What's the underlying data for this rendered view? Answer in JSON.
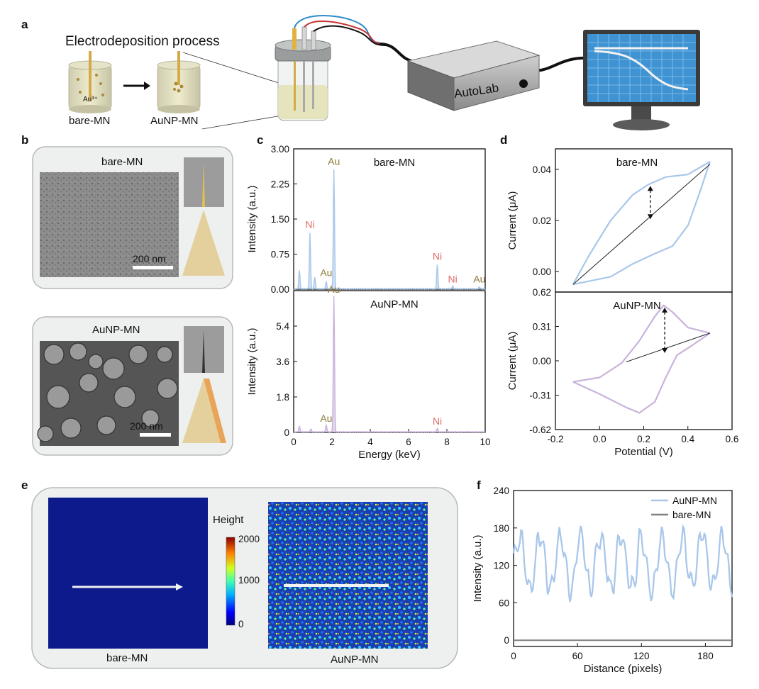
{
  "panel_labels": {
    "a": "a",
    "b": "b",
    "c": "c",
    "d": "d",
    "e": "e",
    "f": "f"
  },
  "panel_a": {
    "title": "Electrodeposition process",
    "label_left": "bare-MN",
    "label_right": "AuNP-MN",
    "ion_label": "Au³⁺",
    "device_label": "AutoLab",
    "colors": {
      "solution": "#d9d6a4",
      "needle": "#d4a94a",
      "particles": "#a88a3c",
      "screen": "#3f93d2"
    }
  },
  "panel_b": {
    "top_label": "bare-MN",
    "bottom_label": "AuNP-MN",
    "scale_bar": "200 nm",
    "colors": {
      "tip": "#e3d09c",
      "coating": "#e8a55a",
      "card": "#edf0ee"
    }
  },
  "chart_data": [
    {
      "id": "c-top",
      "type": "line",
      "title": "bare-MN",
      "xlabel": "Energy (keV)",
      "ylabel": "Intensity (a.u.)",
      "xlim": [
        0,
        10
      ],
      "ylim": [
        0,
        3.0
      ],
      "yticks": [
        "0.00",
        "0.75",
        "1.50",
        "2.25",
        "3.00"
      ],
      "color": "#a9c7ea",
      "peaks": [
        {
          "x": 0.3,
          "y": 0.4
        },
        {
          "x": 0.85,
          "y": 1.2
        },
        {
          "x": 1.1,
          "y": 0.25
        },
        {
          "x": 1.7,
          "y": 0.15
        },
        {
          "x": 2.1,
          "y": 2.55
        },
        {
          "x": 7.5,
          "y": 0.52
        },
        {
          "x": 8.3,
          "y": 0.06
        },
        {
          "x": 9.7,
          "y": 0.04
        }
      ],
      "annotations": [
        {
          "text": "Au",
          "x": 2.1,
          "y": 2.6,
          "color": "#8a7a38"
        },
        {
          "text": "Ni",
          "x": 0.85,
          "y": 1.25,
          "color": "#e06a6a"
        },
        {
          "text": "Au",
          "x": 1.7,
          "y": 0.22,
          "color": "#8a7a38"
        },
        {
          "text": "Ni",
          "x": 7.5,
          "y": 0.57,
          "color": "#e06a6a"
        },
        {
          "text": "Ni",
          "x": 8.3,
          "y": 0.08,
          "color": "#e06a6a"
        },
        {
          "text": "Au",
          "x": 9.7,
          "y": 0.08,
          "color": "#8a7a38"
        }
      ]
    },
    {
      "id": "c-bottom",
      "type": "line",
      "title": "AuNP-MN",
      "xlabel": "Energy (keV)",
      "ylabel": "Intensity (a.u.)",
      "xlim": [
        0,
        10
      ],
      "ylim": [
        0,
        7.2
      ],
      "xticks": [
        "0",
        "2",
        "4",
        "6",
        "8",
        "10"
      ],
      "yticks": [
        "0",
        "1.8",
        "3.6",
        "5.4"
      ],
      "color": "#c9b3dc",
      "peaks": [
        {
          "x": 0.3,
          "y": 0.3
        },
        {
          "x": 0.9,
          "y": 0.15
        },
        {
          "x": 1.7,
          "y": 0.35
        },
        {
          "x": 2.1,
          "y": 6.9
        },
        {
          "x": 7.5,
          "y": 0.18
        }
      ],
      "annotations": [
        {
          "text": "Au",
          "x": 2.1,
          "y": 6.95,
          "color": "#8a7a38"
        },
        {
          "text": "Au",
          "x": 1.7,
          "y": 0.4,
          "color": "#8a7a38"
        },
        {
          "text": "Ni",
          "x": 7.5,
          "y": 0.25,
          "color": "#e06a6a"
        }
      ]
    },
    {
      "id": "d-top",
      "type": "line",
      "title": "bare-MN",
      "xlabel": "Potential (V)",
      "ylabel": "Current (μA)",
      "xlim": [
        -0.2,
        0.6
      ],
      "ylim": [
        -0.008,
        0.048
      ],
      "yticks": [
        "0.00",
        "0.02",
        "0.04"
      ],
      "color": "#a9c7ea",
      "upper": [
        [
          -0.12,
          -0.005
        ],
        [
          -0.05,
          0.006
        ],
        [
          0.05,
          0.02
        ],
        [
          0.15,
          0.03
        ],
        [
          0.22,
          0.034
        ],
        [
          0.3,
          0.037
        ],
        [
          0.4,
          0.038
        ],
        [
          0.5,
          0.043
        ]
      ],
      "lower": [
        [
          0.5,
          0.043
        ],
        [
          0.45,
          0.03
        ],
        [
          0.4,
          0.018
        ],
        [
          0.33,
          0.01
        ],
        [
          0.25,
          0.007
        ],
        [
          0.15,
          0.003
        ],
        [
          0.05,
          -0.002
        ],
        [
          -0.12,
          -0.005
        ]
      ],
      "baseline": [
        [
          -0.12,
          -0.005
        ],
        [
          0.5,
          0.042
        ]
      ],
      "arrow": {
        "x": 0.23,
        "y1": 0.0335,
        "y2": 0.0205
      }
    },
    {
      "id": "d-bottom",
      "type": "line",
      "title": "AuNP-MN",
      "xlabel": "Potential (V)",
      "ylabel": "Current (μA)",
      "xlim": [
        -0.2,
        0.6
      ],
      "ylim": [
        -0.62,
        0.62
      ],
      "xticks": [
        "-0.2",
        "0.0",
        "0.2",
        "0.4",
        "0.6"
      ],
      "yticks": [
        "-0.62",
        "-0.31",
        "0.00",
        "0.31",
        "0.62"
      ],
      "color": "#c9b3dc",
      "upper": [
        [
          -0.12,
          -0.19
        ],
        [
          0.0,
          -0.15
        ],
        [
          0.1,
          -0.02
        ],
        [
          0.18,
          0.18
        ],
        [
          0.25,
          0.4
        ],
        [
          0.29,
          0.5
        ],
        [
          0.33,
          0.44
        ],
        [
          0.4,
          0.3
        ],
        [
          0.5,
          0.25
        ]
      ],
      "lower": [
        [
          0.5,
          0.25
        ],
        [
          0.42,
          0.14
        ],
        [
          0.35,
          0.05
        ],
        [
          0.3,
          -0.15
        ],
        [
          0.25,
          -0.37
        ],
        [
          0.18,
          -0.47
        ],
        [
          0.12,
          -0.42
        ],
        [
          0.0,
          -0.3
        ],
        [
          -0.12,
          -0.19
        ]
      ],
      "baseline": [
        [
          0.12,
          -0.01
        ],
        [
          0.5,
          0.25
        ]
      ],
      "arrow": {
        "x": 0.295,
        "y1": 0.48,
        "y2": 0.07
      }
    },
    {
      "id": "f",
      "type": "line",
      "xlabel": "Distance (pixels)",
      "ylabel": "Intensity (a.u.)",
      "xlim": [
        0,
        205
      ],
      "ylim": [
        -10,
        240
      ],
      "xticks": [
        "0",
        "60",
        "120",
        "180"
      ],
      "yticks": [
        "0",
        "60",
        "120",
        "180",
        "240"
      ],
      "legend": "top-right",
      "series": [
        {
          "name": "AuNP-MN",
          "color": "#a9c7ea"
        },
        {
          "name": "bare-MN",
          "color": "#808080"
        }
      ]
    }
  ],
  "panel_e": {
    "left_label": "bare-MN",
    "right_label": "AuNP-MN",
    "colorbar_title": "Height",
    "colorbar_ticks": [
      "2000",
      "1000",
      "0"
    ],
    "colors": {
      "map_background": "#0c1a8c"
    }
  }
}
